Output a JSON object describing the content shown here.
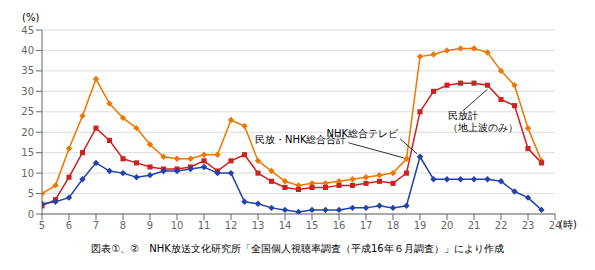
{
  "chart_data": {
    "type": "line",
    "xlabel": "(時)",
    "ylabel": "(%)",
    "caption": "図表①、②　NHK放送文化研究所「全国個人視聴率調査（平成16年６月調査）」により作成",
    "grid": true,
    "xlim": [
      5,
      24
    ],
    "ylim": [
      0,
      45
    ],
    "xticks": [
      5,
      6,
      7,
      8,
      9,
      10,
      11,
      12,
      13,
      14,
      15,
      16,
      17,
      18,
      19,
      20,
      21,
      22,
      23,
      24
    ],
    "yticks": [
      0,
      5,
      10,
      15,
      20,
      25,
      30,
      35,
      40,
      45
    ],
    "x": [
      5.0,
      5.5,
      6.0,
      6.5,
      7.0,
      7.5,
      8.0,
      8.5,
      9.0,
      9.5,
      10.0,
      10.5,
      11.0,
      11.5,
      12.0,
      12.5,
      13.0,
      13.5,
      14.0,
      14.5,
      15.0,
      15.5,
      16.0,
      16.5,
      17.0,
      17.5,
      18.0,
      18.5,
      19.0,
      19.5,
      20.0,
      20.5,
      21.0,
      21.5,
      22.0,
      22.5,
      23.0,
      23.5
    ],
    "series": [
      {
        "name": "民放・NHK総合合計",
        "color": "#ee7700",
        "marker": "diamond",
        "values": [
          5.0,
          7.0,
          16.0,
          24.0,
          33.0,
          27.0,
          23.5,
          21.0,
          17.0,
          14.0,
          13.5,
          13.5,
          14.5,
          14.5,
          23.0,
          21.5,
          13.0,
          10.5,
          8.0,
          7.0,
          7.5,
          7.5,
          8.0,
          8.5,
          9.0,
          9.5,
          10.0,
          13.5,
          38.5,
          39.0,
          40.0,
          40.5,
          40.5,
          39.5,
          35.0,
          31.5,
          21.0,
          13.0
        ]
      },
      {
        "name": "民放計（地上波のみ）",
        "color": "#cc2222",
        "marker": "square",
        "values": [
          2.0,
          3.5,
          9.0,
          15.0,
          21.0,
          18.0,
          13.5,
          12.5,
          11.5,
          11.0,
          11.0,
          11.5,
          13.0,
          10.5,
          13.0,
          14.5,
          10.0,
          8.0,
          6.5,
          6.0,
          6.5,
          6.5,
          7.0,
          7.0,
          7.5,
          8.0,
          7.5,
          10.0,
          25.0,
          30.0,
          31.5,
          32.0,
          32.0,
          31.5,
          28.0,
          26.5,
          16.0,
          12.5
        ]
      },
      {
        "name": "NHK総合テレビ",
        "color": "#2244aa",
        "marker": "diamond",
        "values": [
          2.5,
          3.0,
          4.0,
          8.5,
          12.5,
          10.5,
          10.0,
          9.0,
          9.5,
          10.5,
          10.5,
          11.0,
          11.5,
          10.0,
          10.0,
          3.0,
          2.5,
          1.5,
          1.0,
          0.5,
          1.0,
          1.0,
          1.0,
          1.5,
          1.5,
          2.0,
          1.5,
          2.0,
          14.0,
          8.5,
          8.5,
          8.5,
          8.5,
          8.5,
          8.0,
          5.5,
          4.0,
          1.0
        ]
      }
    ]
  }
}
